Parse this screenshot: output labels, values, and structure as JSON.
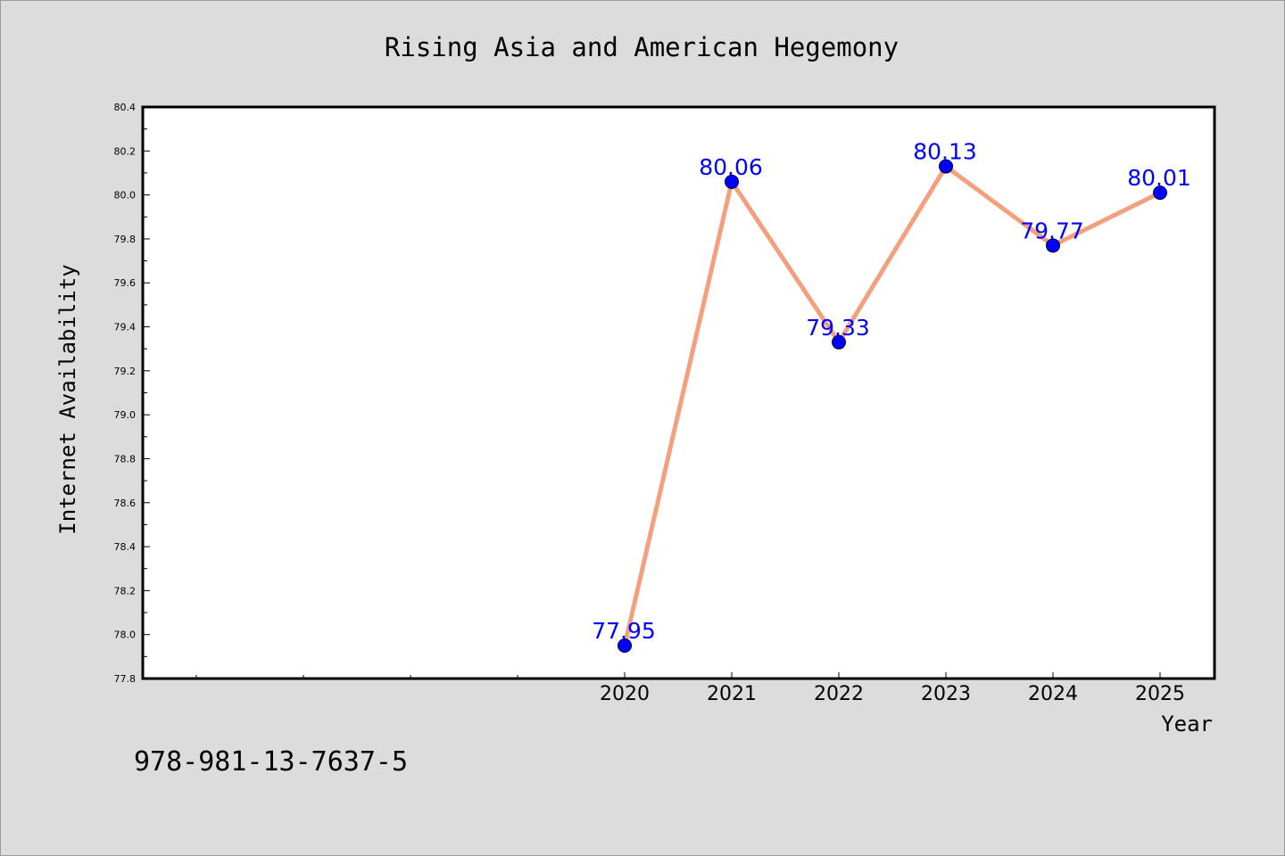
{
  "chart_data": {
    "type": "line",
    "title": "Rising Asia and American Hegemony",
    "xlabel": "Year",
    "ylabel": "Internet Availability",
    "x": [
      "2020",
      "2021",
      "2022",
      "2023",
      "2024",
      "2025"
    ],
    "series": [
      {
        "values": [
          77.95,
          80.06,
          79.33,
          80.13,
          79.77,
          80.01
        ]
      }
    ],
    "data_labels": [
      "77.95",
      "80.06",
      "79.33",
      "80.13",
      "79.77",
      "80.01"
    ],
    "ylim": [
      77.8,
      80.4
    ],
    "yticks": [
      "77.8",
      "78.0",
      "78.2",
      "78.4",
      "78.6",
      "78.8",
      "79.0",
      "79.2",
      "79.4",
      "79.6",
      "79.8",
      "80.0",
      "80.2",
      "80.4"
    ],
    "grid": false,
    "legend": "none",
    "colors": {
      "line": "#f4a07e",
      "marker": "#0000ff",
      "data_label": "#0000ff",
      "plot_background": "#ffffff",
      "figure_background": "#dcdcdc"
    }
  },
  "footer": {
    "isbn": "978-981-13-7637-5"
  }
}
